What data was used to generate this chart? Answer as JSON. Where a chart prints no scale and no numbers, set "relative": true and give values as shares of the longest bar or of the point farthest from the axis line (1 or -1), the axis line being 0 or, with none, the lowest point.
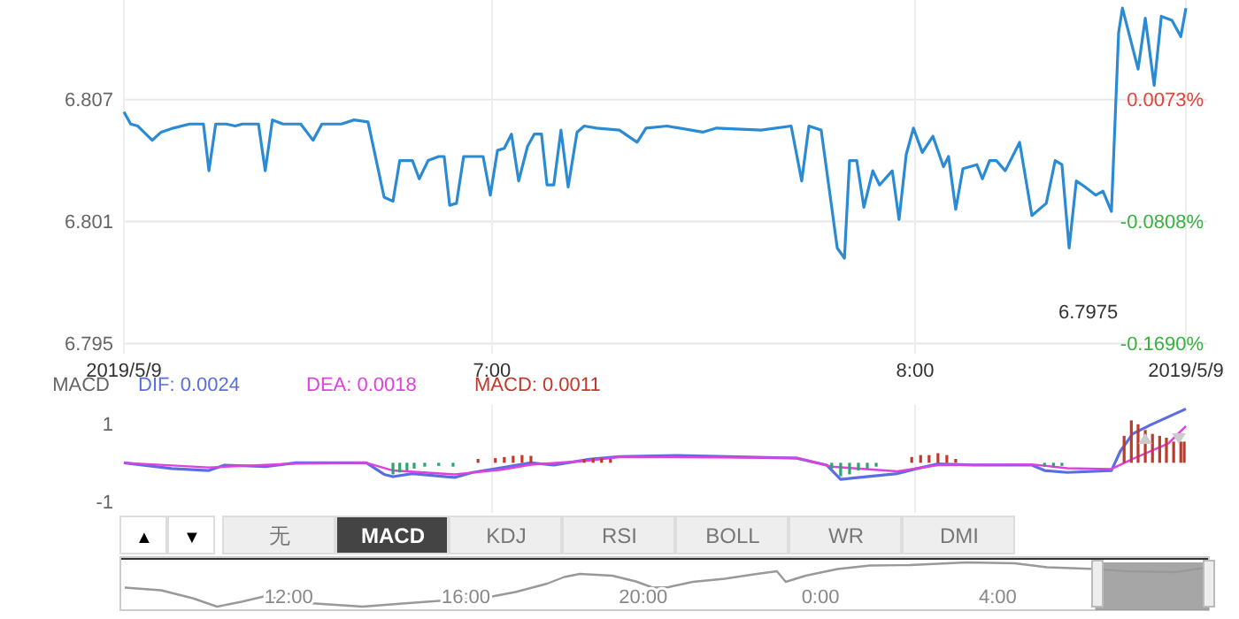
{
  "chart_data": [
    {
      "type": "line",
      "xlim": [
        6.13,
        8.64
      ],
      "xticks": [
        {
          "value": 6.13,
          "label": "2019/5/9"
        },
        {
          "value": 7,
          "label": "7:00"
        },
        {
          "value": 8,
          "label": "8:00"
        },
        {
          "value": 8.64,
          "label": "2019/5/9"
        }
      ],
      "ylim": [
        6.7945,
        6.8119
      ],
      "yticks": [
        6.795,
        6.801,
        6.807
      ],
      "y2lim": [
        -0.1764,
        0.0793
      ],
      "y2ticks": [
        {
          "value": -0.169,
          "label": "-0.1690%"
        },
        {
          "value": -0.0808,
          "label": "-0.0808%"
        },
        {
          "value": 0.0073,
          "label": "0.0073%"
        }
      ],
      "grid": true,
      "annotations": [
        "6.7975"
      ],
      "series": [
        {
          "color": "#2a8bd4",
          "x": [
            6.13,
            6.146,
            6.163,
            6.197,
            6.218,
            6.247,
            6.285,
            6.318,
            6.331,
            6.347,
            6.372,
            6.393,
            6.41,
            6.448,
            6.464,
            6.481,
            6.506,
            6.548,
            6.577,
            6.598,
            6.644,
            6.674,
            6.707,
            6.745,
            6.766,
            6.782,
            6.799,
            6.812,
            6.828,
            6.849,
            6.874,
            6.887,
            6.9,
            6.916,
            6.933,
            6.979,
            6.996,
            7.013,
            7.029,
            7.046,
            7.063,
            7.084,
            7.1,
            7.117,
            7.13,
            7.146,
            7.163,
            7.18,
            7.201,
            7.218,
            7.247,
            7.301,
            7.343,
            7.364,
            7.414,
            7.498,
            7.531,
            7.636,
            7.707,
            7.732,
            7.749,
            7.778,
            7.816,
            7.833,
            7.845,
            7.862,
            7.879,
            7.9,
            7.916,
            7.946,
            7.962,
            7.979,
            7.996,
            8.017,
            8.042,
            8.067,
            8.079,
            8.096,
            8.113,
            8.146,
            8.159,
            8.176,
            8.192,
            8.213,
            8.247,
            8.276,
            8.31,
            8.331,
            8.347,
            8.364,
            8.381,
            8.402,
            8.427,
            8.444,
            8.464,
            8.481,
            8.49,
            8.527,
            8.544,
            8.565,
            8.582,
            8.607,
            8.628,
            8.64
          ],
          "values": [
            6.8064,
            6.8058,
            6.8057,
            6.805,
            6.8054,
            6.8056,
            6.8058,
            6.8058,
            6.8035,
            6.8058,
            6.8058,
            6.8057,
            6.8058,
            6.8058,
            6.8035,
            6.806,
            6.8058,
            6.8058,
            6.805,
            6.8058,
            6.8058,
            6.806,
            6.8059,
            6.8022,
            6.802,
            6.804,
            6.804,
            6.804,
            6.8031,
            6.804,
            6.8042,
            6.8042,
            6.8018,
            6.8019,
            6.8042,
            6.8042,
            6.8023,
            6.8045,
            6.8046,
            6.8053,
            6.803,
            6.8047,
            6.8053,
            6.8053,
            6.8028,
            6.8028,
            6.8055,
            6.8027,
            6.8054,
            6.8057,
            6.8056,
            6.8055,
            6.8049,
            6.8056,
            6.8057,
            6.8054,
            6.8056,
            6.8055,
            6.8057,
            6.803,
            6.8057,
            6.8055,
            6.7997,
            6.7992,
            6.804,
            6.804,
            6.8017,
            6.8035,
            6.8028,
            6.8035,
            6.8011,
            6.8043,
            6.8056,
            6.8044,
            6.8052,
            6.8037,
            6.8042,
            6.8016,
            6.8036,
            6.8038,
            6.8031,
            6.804,
            6.804,
            6.8035,
            6.8049,
            6.8013,
            6.8019,
            6.804,
            6.8038,
            6.7997,
            6.803,
            6.8027,
            6.8023,
            6.8025,
            6.8015,
            6.8103,
            6.8115,
            6.8085,
            6.811,
            6.8077,
            6.8111,
            6.8109,
            6.8101,
            6.8115
          ]
        }
      ]
    },
    {
      "type": "line",
      "title": "MACD",
      "xlim": [
        6.13,
        8.64
      ],
      "xticks": [
        7,
        8
      ],
      "ylim": [
        -1.3,
        1.5
      ],
      "yticks": [
        -1,
        1
      ],
      "tick_labels": "y",
      "grid": "x",
      "legend": "top left",
      "series": [
        {
          "name": "DIF: 0.0024",
          "color": "#5b6ee1",
          "x": [
            6.13,
            6.243,
            6.331,
            6.368,
            6.465,
            6.536,
            6.703,
            6.745,
            6.766,
            6.812,
            6.912,
            6.954,
            7.021,
            7.092,
            7.146,
            7.23,
            7.301,
            7.44,
            7.72,
            7.791,
            7.824,
            7.858,
            7.958,
            8.0,
            8.054,
            8.138,
            8.276,
            8.306,
            8.36,
            8.464,
            8.485,
            8.514,
            8.556,
            8.64
          ],
          "values": [
            0,
            -0.15,
            -0.2,
            -0.06,
            -0.1,
            0,
            0,
            -0.3,
            -0.36,
            -0.28,
            -0.38,
            -0.25,
            -0.13,
            0,
            -0.06,
            0.09,
            0.16,
            0.19,
            0.12,
            -0.06,
            -0.43,
            -0.39,
            -0.28,
            -0.16,
            -0.03,
            -0.06,
            -0.06,
            -0.2,
            -0.25,
            -0.2,
            0.3,
            0.75,
            0.98,
            1.4
          ]
        },
        {
          "name": "DEA: 0.0018",
          "color": "#e040e0",
          "x": [
            6.13,
            6.331,
            6.536,
            6.703,
            6.766,
            6.912,
            7.021,
            7.092,
            7.23,
            7.301,
            7.72,
            7.803,
            7.958,
            8.054,
            8.276,
            8.36,
            8.464,
            8.514,
            8.598,
            8.64
          ],
          "values": [
            0,
            -0.12,
            -0.02,
            0,
            -0.2,
            -0.3,
            -0.18,
            -0.05,
            0.06,
            0.15,
            0.13,
            -0.1,
            -0.22,
            -0.06,
            -0.04,
            -0.14,
            -0.16,
            0.1,
            0.5,
            0.95
          ]
        },
        {
          "name": "MACD: 0.0011",
          "type": "bar",
          "color": "#c0392b",
          "x": [
            6.766,
            6.782,
            6.799,
            6.816,
            6.841,
            6.874,
            6.908,
            6.967,
            7.008,
            7.029,
            7.05,
            7.071,
            7.092,
            7.218,
            7.239,
            7.259,
            7.28,
            7.803,
            7.824,
            7.845,
            7.866,
            7.887,
            7.908,
            7.992,
            8.013,
            8.033,
            8.054,
            8.075,
            8.096,
            8.306,
            8.327,
            8.347,
            8.494,
            8.511,
            8.527,
            8.544,
            8.561,
            8.578,
            8.594,
            8.611,
            8.628,
            8.636
          ],
          "values": [
            -0.3,
            -0.25,
            -0.2,
            -0.15,
            -0.1,
            -0.08,
            -0.1,
            0.1,
            0.12,
            0.15,
            0.18,
            0.2,
            0.18,
            0.1,
            0.12,
            0.12,
            0.1,
            -0.15,
            -0.35,
            -0.3,
            -0.2,
            -0.15,
            -0.1,
            0.15,
            0.2,
            0.2,
            0.25,
            0.2,
            0.1,
            -0.1,
            -0.12,
            -0.08,
            0.7,
            1.1,
            1.0,
            0.85,
            0.75,
            0.7,
            0.65,
            0.55,
            0.55,
            0.55
          ],
          "colors": [
            "#2ea36a",
            "#2ea36a",
            "#2ea36a",
            "#2ea36a",
            "#2ea36a",
            "#2ea36a",
            "#2ea36a",
            "#c0392b",
            "#c0392b",
            "#c0392b",
            "#c0392b",
            "#c0392b",
            "#c0392b",
            "#c0392b",
            "#c0392b",
            "#c0392b",
            "#c0392b",
            "#2ea36a",
            "#2ea36a",
            "#2ea36a",
            "#2ea36a",
            "#2ea36a",
            "#2ea36a",
            "#c0392b",
            "#c0392b",
            "#c0392b",
            "#c0392b",
            "#c0392b",
            "#c0392b",
            "#2ea36a",
            "#2ea36a",
            "#2ea36a",
            "#c0392b",
            "#c0392b",
            "#c0392b",
            "#c0392b",
            "#c0392b",
            "#c0392b",
            "#c0392b",
            "#c0392b",
            "#c0392b",
            "#c0392b"
          ]
        }
      ]
    },
    {
      "type": "other",
      "annotations": [
        "▲",
        "▼",
        "无",
        "MACD",
        "KDJ",
        "RSI",
        "BOLL",
        "WR",
        "DMI"
      ]
    },
    {
      "type": "line",
      "relative": true,
      "tick_labels": "x",
      "xlim": [
        "2019-05-08T08:12",
        "2019-05-09T08:46"
      ],
      "xticks": [
        {
          "value": "2019-05-08T12:00",
          "label": "12:00"
        },
        {
          "value": "2019-05-08T16:00",
          "label": "16:00"
        },
        {
          "value": "2019-05-08T20:00",
          "label": "20:00"
        },
        {
          "value": "2019-05-09T00:00",
          "label": "0:00"
        },
        {
          "value": "2019-05-09T04:00",
          "label": "4:00"
        }
      ],
      "bands": [
        {
          "axis": "x",
          "from": "2019-05-09T06:12",
          "to": "2019-05-09T08:46",
          "color": "#888888"
        }
      ],
      "series": [
        {
          "color": "#999999",
          "x": [
            "2019-05-08T08:18",
            "2019-05-08T09:07",
            "2019-05-08T09:50",
            "2019-05-08T10:23",
            "2019-05-08T10:56",
            "2019-05-08T11:29",
            "2019-05-08T12:01",
            "2019-05-08T12:45",
            "2019-05-08T13:40",
            "2019-05-08T14:34",
            "2019-05-08T15:40",
            "2019-05-08T16:23",
            "2019-05-08T17:07",
            "2019-05-08T17:50",
            "2019-05-08T18:13",
            "2019-05-08T18:34",
            "2019-05-08T19:18",
            "2019-05-08T19:50",
            "2019-05-08T20:13",
            "2019-05-08T20:34",
            "2019-05-08T21:07",
            "2019-05-08T21:50",
            "2019-05-08T22:34",
            "2019-05-08T23:01",
            "2019-05-08T23:13",
            "2019-05-08T23:40",
            "2019-05-09T00:23",
            "2019-05-09T01:07",
            "2019-05-09T02:01",
            "2019-05-09T03:18",
            "2019-05-09T04:23",
            "2019-05-09T05:07",
            "2019-05-09T06:13",
            "2019-05-09T06:56",
            "2019-05-09T08:01",
            "2019-05-09T08:45"
          ],
          "values": [
            0.43,
            0.37,
            0.19,
            0,
            0.11,
            0.24,
            0.11,
            0.06,
            0,
            0.07,
            0.15,
            0.19,
            0.33,
            0.52,
            0.67,
            0.74,
            0.7,
            0.57,
            0.43,
            0.44,
            0.56,
            0.63,
            0.74,
            0.8,
            0.56,
            0.7,
            0.85,
            0.93,
            0.94,
            1,
            0.98,
            0.89,
            0.85,
            0.8,
            0.78,
            0.89
          ]
        }
      ]
    }
  ]
}
